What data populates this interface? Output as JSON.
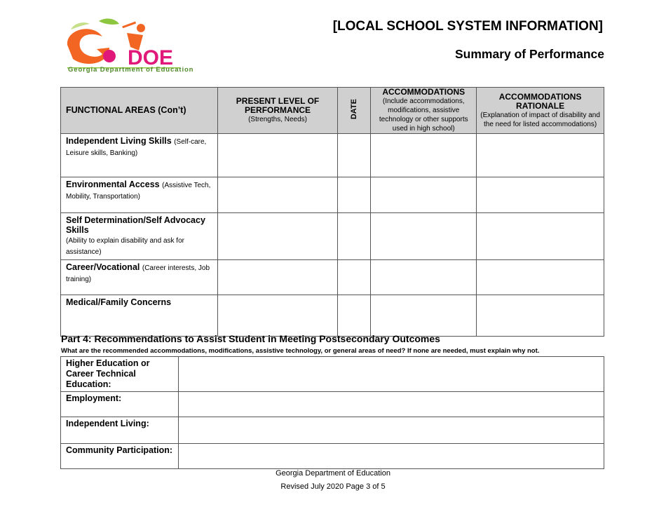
{
  "header": {
    "logo_text": "Georgia Department of Education",
    "logo_letters": "GaDOE",
    "system_info": "[LOCAL SCHOOL SYSTEM INFORMATION]",
    "title": "Summary of Performance"
  },
  "table1": {
    "headers": [
      {
        "title": "FUNCTIONAL AREAS (Con’t)"
      },
      {
        "title": "PRESENT LEVEL OF PERFORMANCE",
        "sub": "(Strengths, Needs)"
      },
      {
        "title": "DATE"
      },
      {
        "title": "ACCOMMODATIONS",
        "sub": "(Include accommodations, modifications, assistive technology or other supports used in high school)"
      },
      {
        "title": "ACCOMMODATIONS RATIONALE",
        "sub": "(Explanation of impact of disability and the need for listed accommodations)"
      }
    ],
    "rows": [
      {
        "label": "Independent Living Skills",
        "note": "(Self-care, Leisure skills, Banking)"
      },
      {
        "label": "Environmental Access",
        "note": "(Assistive Tech, Mobility, Transportation)"
      },
      {
        "label": "Self Determination/Self Advocacy Skills",
        "note": "(Ability to explain disability and ask for assistance)"
      },
      {
        "label": "Career/Vocational",
        "note": "(Career interests, Job training)"
      },
      {
        "label": "Medical/Family Concerns",
        "note": ""
      }
    ]
  },
  "part4": {
    "title": "Part 4:  Recommendations to Assist Student in Meeting Postsecondary Outcomes",
    "question": "What are the recommended accommodations, modifications, assistive technology, or general areas of need? If none are needed, must explain why not.",
    "rows": [
      "Higher Education or Career Technical Education:",
      "Employment:",
      "Independent Living:",
      "Community Participation:"
    ]
  },
  "footer": {
    "line1": "Georgia Department of Education",
    "line2": "Revised July 2020 Page 3 of 5"
  },
  "colors": {
    "header_fill": "#d0d0d0",
    "logo_orange": "#f26522",
    "logo_pink": "#e0187a",
    "logo_green": "#8dc63f"
  }
}
